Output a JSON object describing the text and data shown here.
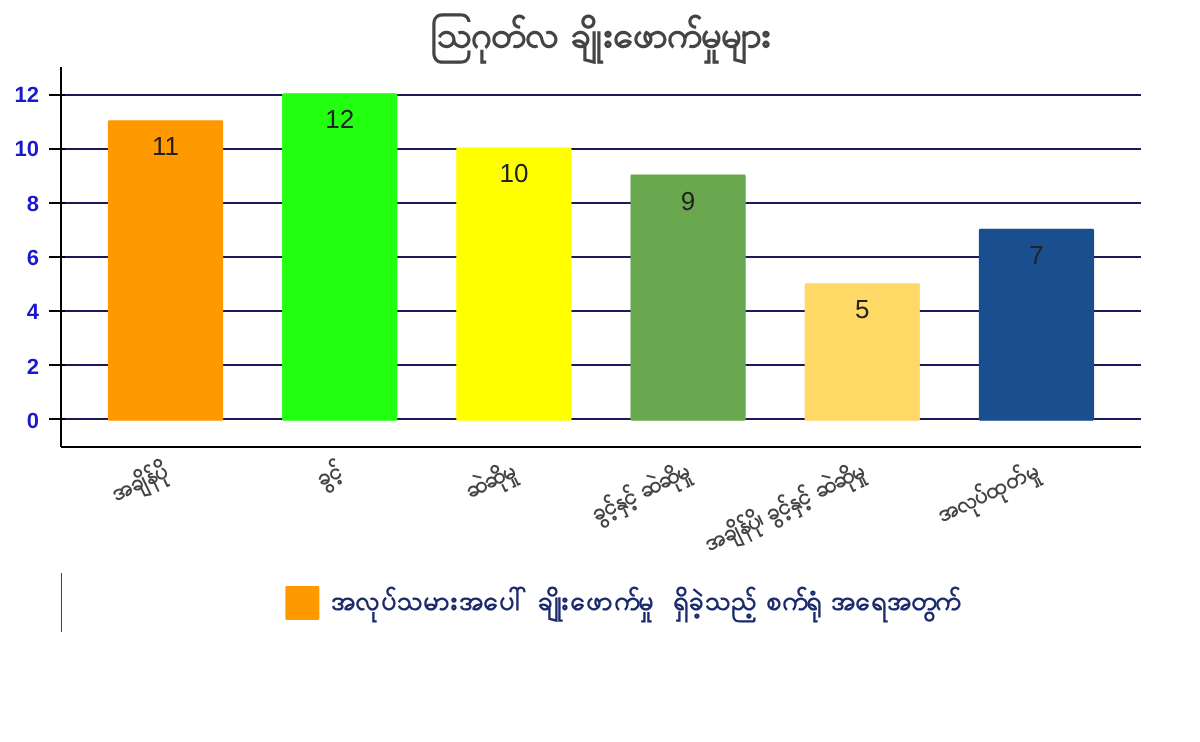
{
  "chart_data": {
    "type": "bar",
    "title": "သြဂုတ်လ ချိုးဖောက်မှုများ",
    "categories": [
      "အချိန်ပို",
      "ခွင့်",
      "ဆဲဆိုမှု",
      "ခွင့်နှင့် ဆဲဆိုမှု",
      "အချိန်ပို၊ ခွင့်နှင့် ဆဲဆိုမှု",
      "အလုပ်ထုတ်မှု"
    ],
    "series": [
      {
        "name": "အလုပ်သမားအပေါ် ချိုးဖောက်မှု  ရှိခဲ့သည့် စက်ရုံ အရေအတွက်",
        "colors": [
          "#ff9900",
          "#22ff11",
          "#ffff00",
          "#6aa84f",
          "#ffd966",
          "#1a4f8f"
        ],
        "values": [
          11,
          12,
          10,
          9,
          5,
          7
        ]
      }
    ],
    "ylim": [
      -1,
      13
    ],
    "yticks": [
      0,
      2,
      4,
      6,
      8,
      10,
      12
    ],
    "grid": "y",
    "legend": "bottom",
    "data_labels": true
  }
}
